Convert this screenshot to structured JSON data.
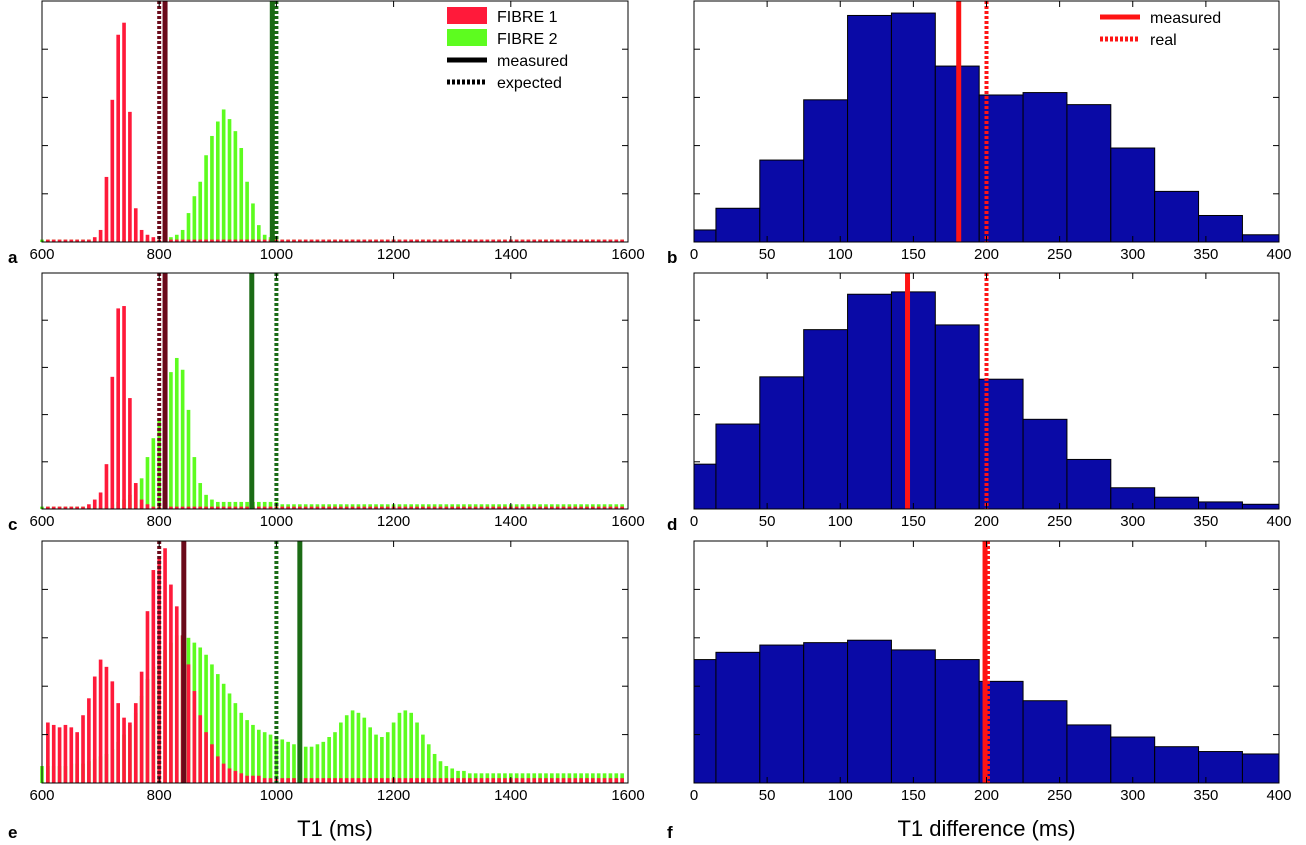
{
  "colors": {
    "fibre1": "#ff1a3a",
    "fibre2": "#5dfc1f",
    "fibre1_line": "#6b0a1a",
    "fibre2_line": "#1b6b15",
    "diff_bar": "#0a0aa6",
    "diff_line": "#ff1414"
  },
  "chart_data": [
    {
      "panel": "a",
      "type": "bar",
      "xlabel": "",
      "xlim": [
        600,
        1600
      ],
      "xticks": [
        600,
        800,
        1000,
        1200,
        1400,
        1600
      ],
      "ylim": [
        0,
        1
      ],
      "yticks": [
        0.2,
        0.4,
        0.6,
        0.8
      ],
      "legend": {
        "placement": "top-right",
        "entries": [
          "FIBRE 1",
          "FIBRE 2",
          "measured",
          "expected"
        ]
      },
      "series": [
        {
          "name": "FIBRE 1",
          "x0": 610,
          "bin": 10,
          "values": [
            0.01,
            0.01,
            0.01,
            0.01,
            0.01,
            0.01,
            0.01,
            0.01,
            0.02,
            0.05,
            0.27,
            0.59,
            0.86,
            0.91,
            0.54,
            0.14,
            0.05,
            0.03,
            0.02,
            0.01,
            0.01,
            0.01,
            0.01,
            0.01,
            0.01,
            0.01,
            0.01,
            0.01,
            0.01,
            0.01,
            0.01,
            0.01,
            0.01,
            0.01,
            0.01,
            0.01,
            0.01,
            0.01,
            0.01,
            0.01,
            0.01,
            0.01,
            0.01,
            0.01,
            0.01,
            0.01,
            0.01,
            0.01,
            0.01,
            0.01,
            0.01,
            0.01,
            0.01,
            0.01,
            0.01,
            0.01,
            0.01,
            0.01,
            0.01,
            0.01,
            0.01,
            0.01,
            0.01,
            0.01,
            0.01,
            0.01,
            0.01,
            0.01,
            0.01,
            0.01,
            0.01,
            0.01,
            0.01,
            0.01,
            0.01,
            0.01,
            0.01,
            0.01,
            0.01,
            0.01,
            0.01,
            0.01,
            0.01,
            0.01,
            0.01,
            0.01,
            0.01,
            0.01,
            0.01,
            0.01,
            0.01,
            0.01,
            0.01,
            0.01,
            0.01,
            0.01,
            0.01,
            0.01,
            0.01
          ]
        },
        {
          "name": "FIBRE 2",
          "x0": 600,
          "bin": 10,
          "values": [
            0.01,
            0.01,
            0.01,
            0.01,
            0.01,
            0.01,
            0.01,
            0.01,
            0.01,
            0.01,
            0.01,
            0.01,
            0.01,
            0.01,
            0.01,
            0.01,
            0.01,
            0.01,
            0.01,
            0.01,
            0.01,
            0.02,
            0.02,
            0.03,
            0.05,
            0.12,
            0.19,
            0.25,
            0.36,
            0.44,
            0.5,
            0.55,
            0.51,
            0.46,
            0.39,
            0.25,
            0.16,
            0.07,
            0.03,
            0.02,
            0.02,
            0.01,
            0.01,
            0.01,
            0.01,
            0.01,
            0.01,
            0.01,
            0.01,
            0.01,
            0.01,
            0.01,
            0.01,
            0.01,
            0.01,
            0.01,
            0.01,
            0.01,
            0.01,
            0.01,
            0.01,
            0.01,
            0.01,
            0.01,
            0.01,
            0.01,
            0.01,
            0.01,
            0.01,
            0.01,
            0.01,
            0.01,
            0.01,
            0.01,
            0.01,
            0.01,
            0.01,
            0.01,
            0.01,
            0.01,
            0.01,
            0.01,
            0.01,
            0.01,
            0.01,
            0.01,
            0.01,
            0.01,
            0.01,
            0.01,
            0.01,
            0.01,
            0.01,
            0.01,
            0.01,
            0.01,
            0.01,
            0.01,
            0.01,
            0.01
          ]
        }
      ],
      "vlines": [
        {
          "series": "FIBRE 1",
          "kind": "expected",
          "x": 800
        },
        {
          "series": "FIBRE 1",
          "kind": "measured",
          "x": 810
        },
        {
          "series": "FIBRE 2",
          "kind": "expected",
          "x": 1000
        },
        {
          "series": "FIBRE 2",
          "kind": "measured",
          "x": 993
        }
      ]
    },
    {
      "panel": "b",
      "type": "bar",
      "xlabel": "",
      "xlim": [
        0,
        400
      ],
      "xticks": [
        0,
        50,
        100,
        150,
        200,
        250,
        300,
        350,
        400
      ],
      "ylim": [
        0,
        1
      ],
      "yticks": [
        0.2,
        0.4,
        0.6,
        0.8
      ],
      "legend": {
        "placement": "top-right",
        "entries": [
          "measured",
          "real"
        ]
      },
      "bin_edges": [
        0,
        15,
        45,
        75,
        105,
        135,
        165,
        195,
        225,
        255,
        285,
        315,
        345,
        375,
        400
      ],
      "values": [
        0.05,
        0.14,
        0.34,
        0.59,
        0.94,
        0.95,
        0.73,
        0.61,
        0.62,
        0.57,
        0.39,
        0.21,
        0.11,
        0.03
      ],
      "vlines": [
        {
          "kind": "measured",
          "x": 181
        },
        {
          "kind": "real",
          "x": 200
        }
      ]
    },
    {
      "panel": "c",
      "type": "bar",
      "xlabel": "",
      "xlim": [
        600,
        1600
      ],
      "xticks": [
        600,
        800,
        1000,
        1200,
        1400,
        1600
      ],
      "ylim": [
        0,
        1
      ],
      "yticks": [
        0.2,
        0.4,
        0.6,
        0.8
      ],
      "series": [
        {
          "name": "FIBRE 1",
          "x0": 610,
          "bin": 10,
          "values": [
            0.01,
            0.01,
            0.01,
            0.01,
            0.01,
            0.01,
            0.01,
            0.02,
            0.04,
            0.07,
            0.19,
            0.56,
            0.85,
            0.86,
            0.47,
            0.11,
            0.04,
            0.02,
            0.01,
            0.01,
            0.01,
            0.01,
            0.01,
            0.01,
            0.01,
            0.01,
            0.01,
            0.01,
            0.01,
            0.01,
            0.01,
            0.01,
            0.01,
            0.01,
            0.01,
            0.01,
            0.01,
            0.01,
            0.01,
            0.01,
            0.01,
            0.01,
            0.01,
            0.01,
            0.01,
            0.01,
            0.01,
            0.01,
            0.01,
            0.01,
            0.01,
            0.01,
            0.01,
            0.01,
            0.01,
            0.01,
            0.01,
            0.01,
            0.01,
            0.01,
            0.01,
            0.01,
            0.01,
            0.01,
            0.01,
            0.01,
            0.01,
            0.01,
            0.01,
            0.01,
            0.01,
            0.01,
            0.01,
            0.01,
            0.01,
            0.01,
            0.01,
            0.01,
            0.01,
            0.01,
            0.01,
            0.01,
            0.01,
            0.01,
            0.01,
            0.01,
            0.01,
            0.01,
            0.01,
            0.01,
            0.01,
            0.01,
            0.01,
            0.01,
            0.01,
            0.01,
            0.01,
            0.01,
            0.01
          ]
        },
        {
          "name": "FIBRE 2",
          "x0": 600,
          "bin": 10,
          "values": [
            0.01,
            0.01,
            0.01,
            0.01,
            0.01,
            0.01,
            0.01,
            0.01,
            0.01,
            0.01,
            0.01,
            0.01,
            0.02,
            0.03,
            0.04,
            0.06,
            0.1,
            0.13,
            0.22,
            0.3,
            0.38,
            0.46,
            0.58,
            0.64,
            0.59,
            0.42,
            0.22,
            0.11,
            0.06,
            0.04,
            0.03,
            0.03,
            0.03,
            0.03,
            0.03,
            0.03,
            0.03,
            0.03,
            0.03,
            0.03,
            0.03,
            0.02,
            0.02,
            0.02,
            0.02,
            0.02,
            0.02,
            0.02,
            0.02,
            0.02,
            0.02,
            0.02,
            0.02,
            0.02,
            0.02,
            0.02,
            0.02,
            0.02,
            0.02,
            0.02,
            0.02,
            0.02,
            0.02,
            0.02,
            0.02,
            0.02,
            0.02,
            0.02,
            0.02,
            0.02,
            0.02,
            0.02,
            0.02,
            0.02,
            0.02,
            0.02,
            0.02,
            0.02,
            0.02,
            0.02,
            0.02,
            0.02,
            0.02,
            0.02,
            0.02,
            0.02,
            0.02,
            0.02,
            0.02,
            0.02,
            0.02,
            0.02,
            0.02,
            0.02,
            0.02,
            0.02,
            0.02,
            0.02,
            0.02,
            0.02
          ]
        }
      ],
      "vlines": [
        {
          "series": "FIBRE 1",
          "kind": "expected",
          "x": 800
        },
        {
          "series": "FIBRE 1",
          "kind": "measured",
          "x": 810
        },
        {
          "series": "FIBRE 2",
          "kind": "expected",
          "x": 1000
        },
        {
          "series": "FIBRE 2",
          "kind": "measured",
          "x": 958
        }
      ]
    },
    {
      "panel": "d",
      "type": "bar",
      "xlabel": "",
      "xlim": [
        0,
        400
      ],
      "xticks": [
        0,
        50,
        100,
        150,
        200,
        250,
        300,
        350,
        400
      ],
      "ylim": [
        0,
        1
      ],
      "yticks": [
        0.2,
        0.4,
        0.6,
        0.8
      ],
      "bin_edges": [
        0,
        15,
        45,
        75,
        105,
        135,
        165,
        195,
        225,
        255,
        285,
        315,
        345,
        375,
        400
      ],
      "values": [
        0.19,
        0.36,
        0.56,
        0.76,
        0.91,
        0.92,
        0.78,
        0.55,
        0.38,
        0.21,
        0.09,
        0.05,
        0.03,
        0.02
      ],
      "vlines": [
        {
          "kind": "measured",
          "x": 146
        },
        {
          "kind": "real",
          "x": 200
        }
      ]
    },
    {
      "panel": "e",
      "type": "bar",
      "xlabel": "T1 (ms)",
      "xlim": [
        600,
        1600
      ],
      "xticks": [
        600,
        800,
        1000,
        1200,
        1400,
        1600
      ],
      "ylim": [
        0,
        1
      ],
      "yticks": [
        0.2,
        0.4,
        0.6,
        0.8
      ],
      "series": [
        {
          "name": "FIBRE 1",
          "x0": 610,
          "bin": 10,
          "values": [
            0.25,
            0.24,
            0.23,
            0.24,
            0.23,
            0.21,
            0.28,
            0.35,
            0.44,
            0.51,
            0.48,
            0.42,
            0.33,
            0.27,
            0.25,
            0.33,
            0.46,
            0.71,
            0.88,
            0.93,
            0.97,
            0.82,
            0.73,
            0.61,
            0.49,
            0.38,
            0.28,
            0.21,
            0.16,
            0.11,
            0.08,
            0.06,
            0.05,
            0.04,
            0.03,
            0.03,
            0.03,
            0.02,
            0.02,
            0.02,
            0.02,
            0.02,
            0.02,
            0.02,
            0.02,
            0.02,
            0.02,
            0.02,
            0.02,
            0.02,
            0.02,
            0.02,
            0.02,
            0.02,
            0.02,
            0.02,
            0.02,
            0.02,
            0.02,
            0.02,
            0.02,
            0.02,
            0.02,
            0.02,
            0.02,
            0.02,
            0.02,
            0.02,
            0.02,
            0.02,
            0.02,
            0.02,
            0.02,
            0.02,
            0.02,
            0.02,
            0.02,
            0.02,
            0.02,
            0.02,
            0.02,
            0.02,
            0.02,
            0.02,
            0.02,
            0.02,
            0.02,
            0.02,
            0.02,
            0.02,
            0.02,
            0.02,
            0.02,
            0.02,
            0.02,
            0.02,
            0.02,
            0.02,
            0.02
          ]
        },
        {
          "name": "FIBRE 2",
          "x0": 600,
          "bin": 10,
          "values": [
            0.07,
            0.07,
            0.07,
            0.07,
            0.07,
            0.08,
            0.08,
            0.08,
            0.09,
            0.1,
            0.11,
            0.12,
            0.14,
            0.17,
            0.2,
            0.24,
            0.29,
            0.36,
            0.43,
            0.48,
            0.52,
            0.55,
            0.58,
            0.61,
            0.61,
            0.6,
            0.58,
            0.56,
            0.53,
            0.49,
            0.45,
            0.41,
            0.37,
            0.33,
            0.29,
            0.26,
            0.24,
            0.22,
            0.21,
            0.2,
            0.19,
            0.18,
            0.17,
            0.16,
            0.16,
            0.15,
            0.15,
            0.16,
            0.17,
            0.19,
            0.21,
            0.25,
            0.28,
            0.3,
            0.29,
            0.27,
            0.23,
            0.2,
            0.19,
            0.21,
            0.25,
            0.29,
            0.3,
            0.29,
            0.25,
            0.2,
            0.16,
            0.12,
            0.09,
            0.07,
            0.06,
            0.05,
            0.05,
            0.04,
            0.04,
            0.04,
            0.04,
            0.04,
            0.04,
            0.04,
            0.04,
            0.04,
            0.04,
            0.04,
            0.04,
            0.04,
            0.04,
            0.04,
            0.04,
            0.04,
            0.04,
            0.04,
            0.04,
            0.04,
            0.04,
            0.04,
            0.04,
            0.04,
            0.04,
            0.04
          ]
        }
      ],
      "vlines": [
        {
          "series": "FIBRE 1",
          "kind": "expected",
          "x": 800
        },
        {
          "series": "FIBRE 1",
          "kind": "measured",
          "x": 842
        },
        {
          "series": "FIBRE 2",
          "kind": "expected",
          "x": 1000
        },
        {
          "series": "FIBRE 2",
          "kind": "measured",
          "x": 1040
        }
      ]
    },
    {
      "panel": "f",
      "type": "bar",
      "xlabel": "T1 difference (ms)",
      "xlim": [
        0,
        400
      ],
      "xticks": [
        0,
        50,
        100,
        150,
        200,
        250,
        300,
        350,
        400
      ],
      "ylim": [
        0,
        1
      ],
      "yticks": [
        0.2,
        0.4,
        0.6,
        0.8
      ],
      "bin_edges": [
        0,
        15,
        45,
        75,
        105,
        135,
        165,
        195,
        225,
        255,
        285,
        315,
        345,
        375,
        400
      ],
      "values": [
        0.51,
        0.54,
        0.57,
        0.58,
        0.59,
        0.55,
        0.51,
        0.42,
        0.34,
        0.24,
        0.19,
        0.15,
        0.13,
        0.12
      ],
      "vlines": [
        {
          "kind": "measured",
          "x": 199
        },
        {
          "kind": "real",
          "x": 201
        }
      ]
    }
  ]
}
